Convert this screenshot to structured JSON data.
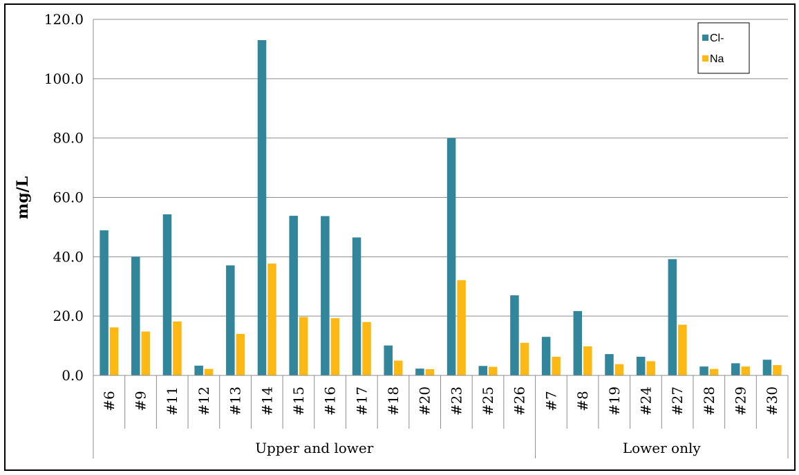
{
  "chart_data": {
    "type": "bar",
    "categories": [
      "#6",
      "#9",
      "#11",
      "#12",
      "#13",
      "#14",
      "#15",
      "#16",
      "#17",
      "#18",
      "#20",
      "#23",
      "#25",
      "#26",
      "#7",
      "#8",
      "#19",
      "#24",
      "#27",
      "#28",
      "#29",
      "#30"
    ],
    "groups": [
      {
        "label": "Upper and lower",
        "count": 14
      },
      {
        "label": "Lower only",
        "count": 8
      }
    ],
    "series": [
      {
        "name": "Cl-",
        "color": "#31869b",
        "values": [
          48.9,
          40.0,
          54.3,
          3.3,
          37.1,
          113.0,
          53.8,
          53.7,
          46.5,
          10.1,
          2.3,
          80.0,
          3.2,
          27.0,
          13.0,
          21.7,
          7.2,
          6.3,
          39.2,
          3.0,
          4.1,
          5.3
        ]
      },
      {
        "name": "Na",
        "color": "#fdb813",
        "values": [
          16.2,
          14.8,
          18.2,
          2.2,
          14.0,
          37.7,
          19.7,
          19.3,
          18.0,
          5.0,
          2.1,
          32.1,
          2.9,
          11.0,
          6.3,
          9.8,
          3.8,
          4.8,
          17.1,
          2.2,
          3.0,
          3.5
        ]
      }
    ],
    "ylabel": "mg/L",
    "ylim": [
      0,
      120
    ],
    "yticks": [
      "0.0",
      "20.0",
      "40.0",
      "60.0",
      "80.0",
      "100.0",
      "120.0"
    ],
    "grid": true,
    "legend_position": "top-right"
  }
}
